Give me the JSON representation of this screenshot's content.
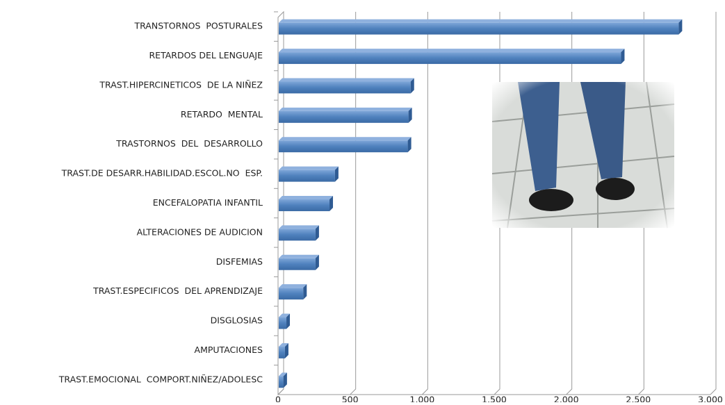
{
  "chart_data": {
    "type": "bar3d_horizontal",
    "categories": [
      "TRANSTORNOS  POSTURALES",
      "RETARDOS DEL LENGUAJE",
      "TRAST.HIPERCINETICOS  DE LA NIÑEZ",
      "RETARDO  MENTAL",
      "TRASTORNOS  DEL  DESARROLLO",
      "TRAST.DE DESARR.HABILIDAD.ESCOL.NO  ESP.",
      "ENCEFALOPATIA INFANTIL",
      "ALTERACIONES DE AUDICION",
      "DISFEMIAS",
      "TRAST.ESPECIFICOS  DEL APRENDIZAJE",
      "DISGLOSIAS",
      "AMPUTACIONES",
      "TRAST.EMOCIONAL  COMPORT.NIÑEZ/ADOLESC"
    ],
    "values": [
      2780,
      2380,
      920,
      905,
      900,
      395,
      357,
      260,
      260,
      175,
      58,
      48,
      38
    ],
    "color": "#4f81bd",
    "xlim": [
      0,
      3000
    ],
    "xticks": [
      0,
      500,
      {
        "value": 1000,
        "label": "1,000"
      },
      {
        "value": 1500,
        "label": "1,500"
      },
      {
        "value": 2000,
        "label": "2,000"
      },
      {
        "value": 2500,
        "label": "2,500"
      },
      {
        "value": 3000,
        "label": "3,000"
      }
    ],
    "grid": true
  }
}
